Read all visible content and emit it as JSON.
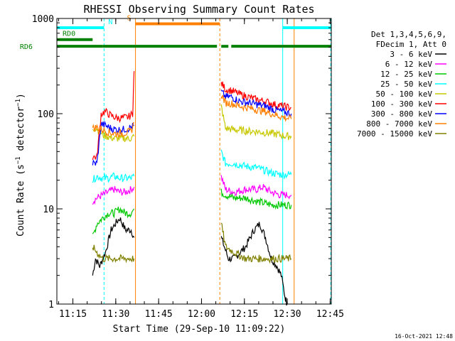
{
  "chart_data": {
    "type": "line",
    "title": "RHESSI Observing Summary Count Rates",
    "xlabel": "Start Time (29-Sep-10 11:09:22)",
    "ylabel": "Count Rate (s⁻¹ detector⁻¹)",
    "ylabel_main": "Count Rate (s",
    "ylabel_exp1": "−1",
    "ylabel_mid": " detector",
    "ylabel_exp2": "−1",
    "ylabel_end": ")",
    "yscale": "log",
    "ylim": [
      1,
      1000
    ],
    "xlim_minutes": [
      0,
      96
    ],
    "x_ticks": [
      {
        "label": "11:15",
        "minutes": 5.6
      },
      {
        "label": "11:30",
        "minutes": 20.6
      },
      {
        "label": "11:45",
        "minutes": 35.6
      },
      {
        "label": "12:00",
        "minutes": 50.6
      },
      {
        "label": "12:15",
        "minutes": 65.6
      },
      {
        "label": "12:30",
        "minutes": 80.6
      },
      {
        "label": "12:45",
        "minutes": 95.6
      }
    ],
    "y_ticks": [
      {
        "label": "1",
        "value": 1
      },
      {
        "label": "10",
        "value": 10
      },
      {
        "label": "100",
        "value": 100
      },
      {
        "label": "1000",
        "value": 1000
      }
    ],
    "legend": {
      "placement": "right",
      "header1": "Det 1,3,4,5,6,9,",
      "header2": "FDecim 1, Att 0"
    },
    "series": [
      {
        "name": "3 - 6 keV",
        "color": "#000000",
        "seg1": [
          [
            12.5,
            2.0
          ],
          [
            13.5,
            3.0
          ],
          [
            15,
            2.5
          ],
          [
            17,
            3.5
          ],
          [
            19,
            6
          ],
          [
            20.5,
            7
          ],
          [
            22,
            8
          ],
          [
            24,
            6
          ],
          [
            26,
            6
          ],
          [
            27,
            5
          ]
        ],
        "seg2": [
          [
            57.5,
            5
          ],
          [
            60,
            3
          ],
          [
            62,
            3
          ],
          [
            66,
            4
          ],
          [
            69,
            6
          ],
          [
            71,
            7
          ],
          [
            73,
            5
          ],
          [
            75,
            3
          ],
          [
            77,
            2.5
          ],
          [
            78.5,
            2
          ],
          [
            79.8,
            1.2
          ],
          [
            80.5,
            1.0
          ]
        ]
      },
      {
        "name": "6 - 12 keV",
        "color": "#ff00ff",
        "seg1": [
          [
            12.5,
            12
          ],
          [
            14,
            13
          ],
          [
            16,
            14
          ],
          [
            18,
            15
          ],
          [
            20,
            16
          ],
          [
            22,
            15
          ],
          [
            24,
            15
          ],
          [
            26,
            16
          ],
          [
            27,
            17
          ]
        ],
        "seg2": [
          [
            57.5,
            22
          ],
          [
            59,
            16
          ],
          [
            62,
            15
          ],
          [
            66,
            16
          ],
          [
            70,
            16
          ],
          [
            72,
            17
          ],
          [
            75,
            15
          ],
          [
            78,
            14
          ],
          [
            80,
            14
          ],
          [
            82,
            14
          ]
        ]
      },
      {
        "name": "12 - 25 keV",
        "color": "#00c800",
        "seg1": [
          [
            12.5,
            5
          ],
          [
            14,
            7
          ],
          [
            16,
            8
          ],
          [
            18,
            9
          ],
          [
            20,
            9
          ],
          [
            22,
            10
          ],
          [
            24,
            9
          ],
          [
            26,
            9
          ],
          [
            27,
            10
          ]
        ],
        "seg2": [
          [
            57.5,
            15
          ],
          [
            59,
            14
          ],
          [
            62,
            13
          ],
          [
            66,
            13
          ],
          [
            70,
            12
          ],
          [
            75,
            11
          ],
          [
            78,
            11
          ],
          [
            80,
            11
          ],
          [
            82,
            11
          ]
        ]
      },
      {
        "name": "25 - 50 keV",
        "color": "#00ffff",
        "seg1": [
          [
            12.5,
            20
          ],
          [
            14,
            22
          ],
          [
            16,
            21
          ],
          [
            18,
            21
          ],
          [
            20,
            22
          ],
          [
            22,
            21
          ],
          [
            24,
            21
          ],
          [
            26,
            21
          ],
          [
            27,
            22
          ]
        ],
        "seg2": [
          [
            57.5,
            40
          ],
          [
            59,
            30
          ],
          [
            62,
            30
          ],
          [
            66,
            28
          ],
          [
            70,
            27
          ],
          [
            75,
            24
          ],
          [
            78,
            23
          ],
          [
            80,
            23
          ],
          [
            82,
            23
          ]
        ]
      },
      {
        "name": "50 - 100 keV",
        "color": "#c8c800",
        "seg1": [
          [
            12.5,
            70
          ],
          [
            14,
            70
          ],
          [
            16,
            60
          ],
          [
            18,
            57
          ],
          [
            20,
            55
          ],
          [
            22,
            55
          ],
          [
            24,
            55
          ],
          [
            26,
            55
          ],
          [
            27,
            58
          ]
        ],
        "seg2": [
          [
            57.5,
            120
          ],
          [
            59,
            70
          ],
          [
            62,
            68
          ],
          [
            66,
            66
          ],
          [
            70,
            65
          ],
          [
            75,
            62
          ],
          [
            78,
            60
          ],
          [
            80,
            58
          ],
          [
            82,
            58
          ]
        ]
      },
      {
        "name": "100 - 300 keV",
        "color": "#ff0000",
        "seg1": [
          [
            12.5,
            35
          ],
          [
            14,
            35
          ],
          [
            15.5,
            100
          ],
          [
            17,
            105
          ],
          [
            19,
            95
          ],
          [
            21,
            90
          ],
          [
            23,
            90
          ],
          [
            25,
            92
          ],
          [
            26.5,
            100
          ],
          [
            27,
            280
          ]
        ],
        "seg2": [
          [
            57.5,
            210
          ],
          [
            59,
            180
          ],
          [
            61,
            175
          ],
          [
            64,
            160
          ],
          [
            67,
            150
          ],
          [
            70,
            140
          ],
          [
            73,
            135
          ],
          [
            76,
            125
          ],
          [
            79,
            120
          ],
          [
            82,
            115
          ]
        ]
      },
      {
        "name": "300 - 800 keV",
        "color": "#0000ff",
        "seg1": [
          [
            12.5,
            30
          ],
          [
            14,
            30
          ],
          [
            15.5,
            78
          ],
          [
            17,
            75
          ],
          [
            19,
            70
          ],
          [
            21,
            68
          ],
          [
            23,
            68
          ],
          [
            25,
            70
          ],
          [
            27,
            75
          ]
        ],
        "seg2": [
          [
            57.5,
            170
          ],
          [
            59,
            150
          ],
          [
            61,
            150
          ],
          [
            64,
            135
          ],
          [
            67,
            130
          ],
          [
            70,
            125
          ],
          [
            73,
            120
          ],
          [
            76,
            110
          ],
          [
            79,
            105
          ],
          [
            82,
            100
          ]
        ]
      },
      {
        "name": "800 - 7000 keV",
        "color": "#ff8000",
        "seg1": [
          [
            12.5,
            70
          ],
          [
            14,
            72
          ],
          [
            16,
            68
          ],
          [
            18,
            64
          ],
          [
            20,
            62
          ],
          [
            22,
            62
          ],
          [
            24,
            63
          ],
          [
            26,
            65
          ],
          [
            27,
            80
          ]
        ],
        "seg2": [
          [
            57.5,
            160
          ],
          [
            59,
            130
          ],
          [
            61,
            128
          ],
          [
            64,
            120
          ],
          [
            67,
            115
          ],
          [
            70,
            110
          ],
          [
            73,
            105
          ],
          [
            76,
            98
          ],
          [
            79,
            92
          ],
          [
            82,
            88
          ]
        ]
      },
      {
        "name": "7000 - 15000 keV",
        "color": "#808000",
        "seg1": [
          [
            12.5,
            4
          ],
          [
            14,
            3.5
          ],
          [
            16,
            3
          ],
          [
            18,
            3
          ],
          [
            20,
            3
          ],
          [
            22,
            3
          ],
          [
            24,
            3
          ],
          [
            26,
            3
          ],
          [
            27,
            3
          ]
        ],
        "seg2": [
          [
            57.5,
            7
          ],
          [
            59,
            4
          ],
          [
            62,
            3.5
          ],
          [
            66,
            3
          ],
          [
            70,
            3
          ],
          [
            74,
            3
          ],
          [
            78,
            3
          ],
          [
            80,
            3
          ],
          [
            82,
            3
          ]
        ]
      }
    ],
    "state_bars": [
      {
        "label": "N",
        "color": "#00ffff",
        "segments": [
          [
            0,
            16.5
          ],
          [
            79,
            96
          ]
        ],
        "level": 800,
        "label_at": 18
      },
      {
        "label": "S",
        "color": "#ff8000",
        "segments": [
          [
            27.5,
            57
          ]
        ],
        "level": 880,
        "label_at": 24.5
      },
      {
        "label": "RD0",
        "color": "#008000",
        "segments": [
          [
            0,
            12.5
          ]
        ],
        "level": 600,
        "label_at": 2
      },
      {
        "label": "RD6",
        "color": "#008000",
        "segments": [
          [
            0,
            16
          ],
          [
            16,
            56
          ],
          [
            57.5,
            60
          ],
          [
            61,
            96
          ]
        ],
        "level": 510,
        "label_at": -7
      }
    ],
    "vertical_lines": [
      {
        "at": 0,
        "color": "#00ffff",
        "style": "dashed"
      },
      {
        "at": 16.5,
        "color": "#00ffff",
        "style": "dashed"
      },
      {
        "at": 27.5,
        "color": "#ff8000",
        "style": "solid"
      },
      {
        "at": 57,
        "color": "#ff8000",
        "style": "dashed"
      },
      {
        "at": 79,
        "color": "#00ffff",
        "style": "solid"
      },
      {
        "at": 83,
        "color": "#ff8000",
        "style": "solid"
      },
      {
        "at": 95.8,
        "color": "#00ffff",
        "style": "dashed"
      }
    ],
    "footer_date": "16-Oct-2021 12:48"
  }
}
